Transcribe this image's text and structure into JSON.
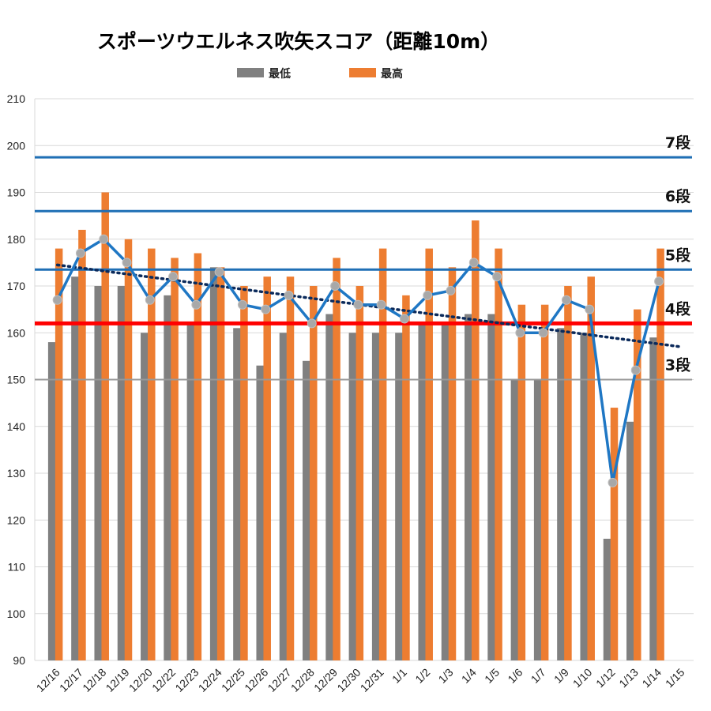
{
  "chart_data": {
    "type": "bar",
    "title": "スポーツウエルネス吹矢スコア（距離10m）",
    "categories": [
      "12/16",
      "12/17",
      "12/18",
      "12/19",
      "12/20",
      "12/22",
      "12/23",
      "12/24",
      "12/25",
      "12/26",
      "12/27",
      "12/28",
      "12/29",
      "12/30",
      "12/31",
      "1/1",
      "1/2",
      "1/3",
      "1/4",
      "1/5",
      "1/6",
      "1/7",
      "1/9",
      "1/10",
      "1/12",
      "1/13",
      "1/14",
      "1/15"
    ],
    "series": [
      {
        "name": "最低",
        "color": "#808080",
        "values": [
          158,
          172,
          170,
          170,
          160,
          168,
          162,
          174,
          161,
          153,
          160,
          154,
          164,
          160,
          160,
          160,
          162,
          162,
          164,
          164,
          150,
          150,
          161,
          160,
          116,
          141,
          159,
          null
        ]
      },
      {
        "name": "最高",
        "color": "#ED7D31",
        "values": [
          178,
          182,
          190,
          180,
          178,
          176,
          177,
          174,
          170,
          172,
          172,
          170,
          176,
          170,
          178,
          168,
          178,
          174,
          184,
          178,
          166,
          166,
          170,
          172,
          144,
          165,
          178,
          null
        ]
      }
    ],
    "line": {
      "color": "#1F77C4",
      "values": [
        167,
        177,
        180,
        175,
        167,
        172,
        166,
        173,
        166,
        165,
        168,
        162,
        170,
        166,
        166,
        163,
        168,
        169,
        175,
        172,
        160,
        160,
        167,
        165,
        128,
        152,
        171,
        null
      ]
    },
    "trend": {
      "color": "#0B2A5B",
      "start": 174.5,
      "end": 157
    },
    "reference_lines": [
      {
        "label": "7段",
        "value": 197.5,
        "color": "#1F6FB5"
      },
      {
        "label": "6段",
        "value": 186,
        "color": "#1F6FB5"
      },
      {
        "label": "5段",
        "value": 173.5,
        "color": "#1F6FB5"
      },
      {
        "label": "4段",
        "value": 162,
        "color": "#FF0000"
      },
      {
        "label": "3段",
        "value": 150,
        "color": "#999999"
      }
    ],
    "ylim": [
      90,
      210
    ],
    "yticks": [
      90,
      100,
      110,
      120,
      130,
      140,
      150,
      160,
      170,
      180,
      190,
      200,
      210
    ],
    "grid": true,
    "legend_position": "top"
  }
}
